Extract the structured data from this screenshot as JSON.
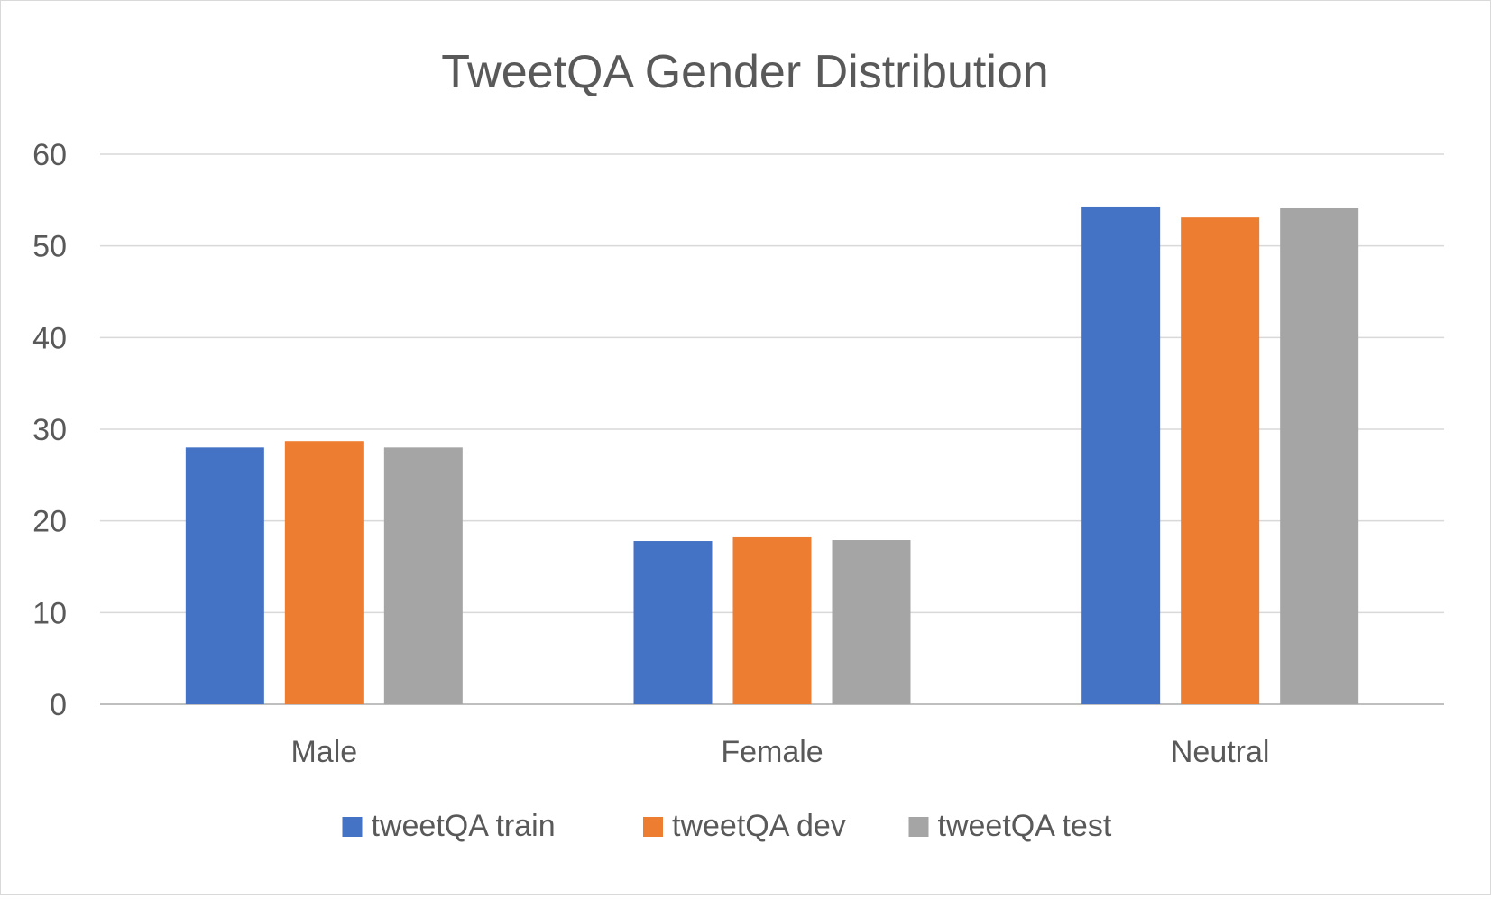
{
  "chart_data": {
    "type": "bar",
    "title": "TweetQA Gender Distribution",
    "xlabel": "",
    "ylabel": "",
    "categories": [
      "Male",
      "Female",
      "Neutral"
    ],
    "series": [
      {
        "name": "tweetQA train",
        "values": [
          28,
          17.8,
          54.2
        ],
        "color": "#4472c4"
      },
      {
        "name": "tweetQA dev",
        "values": [
          28.7,
          18.3,
          53.1
        ],
        "color": "#ed7d31"
      },
      {
        "name": "tweetQA test",
        "values": [
          28,
          17.9,
          54.1
        ],
        "color": "#a5a5a5"
      }
    ],
    "ylim": [
      0,
      60
    ],
    "yticks": [
      "0",
      "10",
      "20",
      "30",
      "40",
      "50",
      "60"
    ],
    "grid": true,
    "legend_position": "bottom"
  }
}
